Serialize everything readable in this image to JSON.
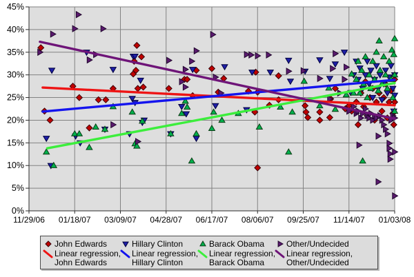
{
  "chart_data": {
    "type": "scatter",
    "title": "",
    "xlabel": "",
    "ylabel": "",
    "ylim": [
      0,
      45
    ],
    "y_tick_step": 5,
    "y_tick_labels": [
      "45%",
      "40%",
      "35%",
      "30%",
      "25%",
      "20%",
      "15%",
      "10%",
      "5%",
      "0%"
    ],
    "x_tick_labels": [
      "11/29/06",
      "01/18/07",
      "03/09/07",
      "04/28/07",
      "06/17/07",
      "08/06/07",
      "09/25/07",
      "11/14/07",
      "01/03/08"
    ],
    "x_days_per_tick": 50,
    "x_range_days": [
      0,
      400
    ],
    "grid": true,
    "legend_position": "bottom",
    "plot_bg_color": "#dedede",
    "grid_color": "#828282",
    "axis_color": "#2b2b2b",
    "series": [
      {
        "name": "John Edwards",
        "marker": "diamond",
        "color": "#c00000",
        "stroke": "#3a0008",
        "points": [
          [
            13,
            36
          ],
          [
            17,
            22
          ],
          [
            23,
            20
          ],
          [
            48,
            27.5
          ],
          [
            55,
            25
          ],
          [
            66,
            18.3
          ],
          [
            76,
            24.5
          ],
          [
            84,
            24.5
          ],
          [
            92,
            27
          ],
          [
            114,
            30.2
          ],
          [
            115,
            33
          ],
          [
            117,
            31
          ],
          [
            118,
            36.5
          ],
          [
            119,
            27
          ],
          [
            123,
            34
          ],
          [
            125,
            27.3
          ],
          [
            153,
            27
          ],
          [
            170,
            29
          ],
          [
            173,
            29
          ],
          [
            179,
            25.4
          ],
          [
            183,
            31
          ],
          [
            200,
            31.4
          ],
          [
            207,
            26.2
          ],
          [
            213,
            29.2
          ],
          [
            240,
            26.4
          ],
          [
            247,
            21.8
          ],
          [
            248,
            30.6
          ],
          [
            250,
            26.2
          ],
          [
            250,
            9.5
          ],
          [
            263,
            23.3
          ],
          [
            273,
            24.5
          ],
          [
            273,
            29.8
          ],
          [
            302,
            23.2
          ],
          [
            303,
            21.8
          ],
          [
            305,
            20.6
          ],
          [
            318,
            21.8
          ],
          [
            318,
            20
          ],
          [
            329,
            20.6
          ],
          [
            330,
            24.7
          ],
          [
            335,
            27
          ],
          [
            346,
            22.5
          ],
          [
            350,
            23.2
          ],
          [
            353,
            22
          ],
          [
            358,
            24
          ],
          [
            360,
            19
          ],
          [
            363,
            26
          ],
          [
            366,
            23
          ],
          [
            368,
            28.5
          ],
          [
            370,
            21
          ],
          [
            373,
            25
          ],
          [
            376,
            27
          ],
          [
            378,
            20
          ],
          [
            380,
            24
          ],
          [
            383,
            26
          ],
          [
            386,
            22
          ],
          [
            388,
            25
          ],
          [
            390,
            28
          ],
          [
            392,
            20.5
          ],
          [
            394,
            24
          ],
          [
            396,
            26.5
          ],
          [
            398,
            21.5
          ],
          [
            399,
            19
          ],
          [
            400,
            29
          ],
          [
            400,
            24
          ]
        ]
      },
      {
        "name": "Hillary Clinton",
        "marker": "triangle-down",
        "color": "#1f1fa8",
        "stroke": "#00003c",
        "points": [
          [
            19,
            16
          ],
          [
            24,
            10
          ],
          [
            25,
            31
          ],
          [
            51,
            16.5
          ],
          [
            56,
            15
          ],
          [
            63,
            35
          ],
          [
            83,
            18
          ],
          [
            92,
            31.2
          ],
          [
            110,
            17
          ],
          [
            113,
            24.8
          ],
          [
            114,
            34.1
          ],
          [
            116,
            34.1
          ],
          [
            116,
            23.9
          ],
          [
            122,
            28.8
          ],
          [
            124,
            19.5
          ],
          [
            126,
            20
          ],
          [
            155,
            17
          ],
          [
            167,
            23
          ],
          [
            172,
            21.4
          ],
          [
            179,
            31.2
          ],
          [
            183,
            16
          ],
          [
            204,
            23.2
          ],
          [
            214,
            31.8
          ],
          [
            238,
            22.3
          ],
          [
            244,
            30.6
          ],
          [
            264,
            30.6
          ],
          [
            284,
            33.2
          ],
          [
            286,
            28.6
          ],
          [
            302,
            30.8
          ],
          [
            318,
            33.3
          ],
          [
            329,
            29.2
          ],
          [
            335,
            32.4
          ],
          [
            345,
            35
          ],
          [
            352,
            26.1
          ],
          [
            355,
            30
          ],
          [
            358,
            33
          ],
          [
            360,
            29
          ],
          [
            362,
            31.5
          ],
          [
            365,
            27
          ],
          [
            368,
            30
          ],
          [
            370,
            33
          ],
          [
            372,
            28
          ],
          [
            374,
            31
          ],
          [
            376,
            25
          ],
          [
            378,
            29
          ],
          [
            380,
            32
          ],
          [
            382,
            27
          ],
          [
            384,
            30
          ],
          [
            386,
            24.5
          ],
          [
            388,
            28
          ],
          [
            390,
            31
          ],
          [
            392,
            26
          ],
          [
            394,
            29.5
          ],
          [
            396,
            32
          ],
          [
            398,
            27
          ],
          [
            399,
            22
          ],
          [
            400,
            30
          ],
          [
            400,
            25.5
          ]
        ]
      },
      {
        "name": "Barack Obama",
        "marker": "triangle-up",
        "color": "#00b04c",
        "stroke": "#0a3c14",
        "points": [
          [
            19,
            13
          ],
          [
            27,
            10
          ],
          [
            50,
            17
          ],
          [
            55,
            17
          ],
          [
            66,
            14
          ],
          [
            73,
            18.5
          ],
          [
            83,
            18
          ],
          [
            92,
            23
          ],
          [
            113,
            21.8
          ],
          [
            116,
            14.8
          ],
          [
            118,
            14.3
          ],
          [
            124,
            19.8
          ],
          [
            155,
            17
          ],
          [
            167,
            21.5
          ],
          [
            171,
            24.2
          ],
          [
            173,
            22.9
          ],
          [
            178,
            11
          ],
          [
            183,
            17
          ],
          [
            200,
            18.2
          ],
          [
            202,
            21.8
          ],
          [
            211,
            20
          ],
          [
            229,
            21.5
          ],
          [
            252,
            18.5
          ],
          [
            275,
            22.9
          ],
          [
            284,
            13
          ],
          [
            288,
            21.8
          ],
          [
            301,
            28.6
          ],
          [
            318,
            23.2
          ],
          [
            328,
            27.1
          ],
          [
            335,
            22.4
          ],
          [
            347,
            25.6
          ],
          [
            353,
            30.2
          ],
          [
            355,
            26
          ],
          [
            358,
            29
          ],
          [
            360,
            33
          ],
          [
            362,
            26
          ],
          [
            364,
            31
          ],
          [
            365,
            11
          ],
          [
            366,
            28
          ],
          [
            368,
            34
          ],
          [
            370,
            25
          ],
          [
            372,
            30
          ],
          [
            374,
            27
          ],
          [
            376,
            33
          ],
          [
            378,
            29
          ],
          [
            380,
            35
          ],
          [
            382,
            26.5
          ],
          [
            383,
            37.5
          ],
          [
            384,
            31
          ],
          [
            386,
            28
          ],
          [
            388,
            34
          ],
          [
            390,
            30
          ],
          [
            392,
            27
          ],
          [
            394,
            33
          ],
          [
            396,
            29
          ],
          [
            397,
            35.5
          ],
          [
            398,
            25
          ],
          [
            399,
            34.5
          ],
          [
            400,
            38
          ],
          [
            400,
            30
          ],
          [
            400,
            22
          ]
        ]
      },
      {
        "name": "Other/Undecided",
        "marker": "triangle-right",
        "color": "#5a1a6e",
        "stroke": "#20052c",
        "points": [
          [
            12,
            35
          ],
          [
            26,
            39
          ],
          [
            50,
            40.2
          ],
          [
            54,
            43.3
          ],
          [
            66,
            33.3
          ],
          [
            73,
            34.5
          ],
          [
            81,
            40.2
          ],
          [
            92,
            19
          ],
          [
            119,
            15.3
          ],
          [
            153,
            33.2
          ],
          [
            167,
            28.5
          ],
          [
            171,
            31.2
          ],
          [
            171,
            27.3
          ],
          [
            178,
            33
          ],
          [
            183,
            35.3
          ],
          [
            201,
            38.9
          ],
          [
            204,
            29.5
          ],
          [
            210,
            26
          ],
          [
            238,
            34.5
          ],
          [
            243,
            34.4
          ],
          [
            250,
            34.2
          ],
          [
            262,
            34.4
          ],
          [
            284,
            30.8
          ],
          [
            300,
            30.9
          ],
          [
            318,
            29.2
          ],
          [
            329,
            24.7
          ],
          [
            332,
            31.4
          ],
          [
            335,
            34.7
          ],
          [
            340,
            26
          ],
          [
            345,
            29
          ],
          [
            347,
            31.7
          ],
          [
            350,
            22
          ],
          [
            355,
            23
          ],
          [
            358,
            21.5
          ],
          [
            360,
            22
          ],
          [
            361,
            14.5
          ],
          [
            363,
            20.5
          ],
          [
            365,
            21.5
          ],
          [
            368,
            22.5
          ],
          [
            370,
            21
          ],
          [
            372,
            20.5
          ],
          [
            374,
            21.5
          ],
          [
            376,
            20
          ],
          [
            378,
            21
          ],
          [
            380,
            20.5
          ],
          [
            382,
            16.5
          ],
          [
            382,
            6.4
          ],
          [
            384,
            21
          ],
          [
            386,
            20
          ],
          [
            388,
            19
          ],
          [
            390,
            18
          ],
          [
            392,
            17
          ],
          [
            394,
            14.9
          ],
          [
            394,
            13.8
          ],
          [
            395,
            12.6
          ],
          [
            395,
            11.4
          ],
          [
            396,
            20
          ],
          [
            398,
            21
          ],
          [
            400,
            20.5
          ],
          [
            400,
            13
          ],
          [
            400,
            3.3
          ]
        ]
      }
    ],
    "regression_lines": [
      {
        "name": "Linear regression, John Edwards",
        "color": "#ee1414",
        "start": [
          15,
          27.2
        ],
        "end": [
          400,
          23.3
        ]
      },
      {
        "name": "Linear regression, Hillary Clinton",
        "color": "#1414ee",
        "start": [
          15,
          21.9
        ],
        "end": [
          400,
          28.9
        ]
      },
      {
        "name": "Linear regression, Barack Obama",
        "color": "#3cee3c",
        "start": [
          20,
          13.8
        ],
        "end": [
          400,
          28.2
        ]
      },
      {
        "name": "Linear regression, Other/Undecided",
        "color": "#6e1478",
        "start": [
          12,
          37.3
        ],
        "end": [
          400,
          20.3
        ]
      }
    ]
  },
  "legend": {
    "items": [
      {
        "name": "John Edwards",
        "regression_label_line1": "Linear regression,",
        "regression_label_line2": "John Edwards"
      },
      {
        "name": "Hillary Clinton",
        "regression_label_line1": "Linear regression,",
        "regression_label_line2": "Hillary Clinton"
      },
      {
        "name": "Barack Obama",
        "regression_label_line1": "Linear regression,",
        "regression_label_line2": "Barack Obama"
      },
      {
        "name": "Other/Undecided",
        "regression_label_line1": "Linear regression,",
        "regression_label_line2": "Other/Undecided"
      }
    ]
  }
}
